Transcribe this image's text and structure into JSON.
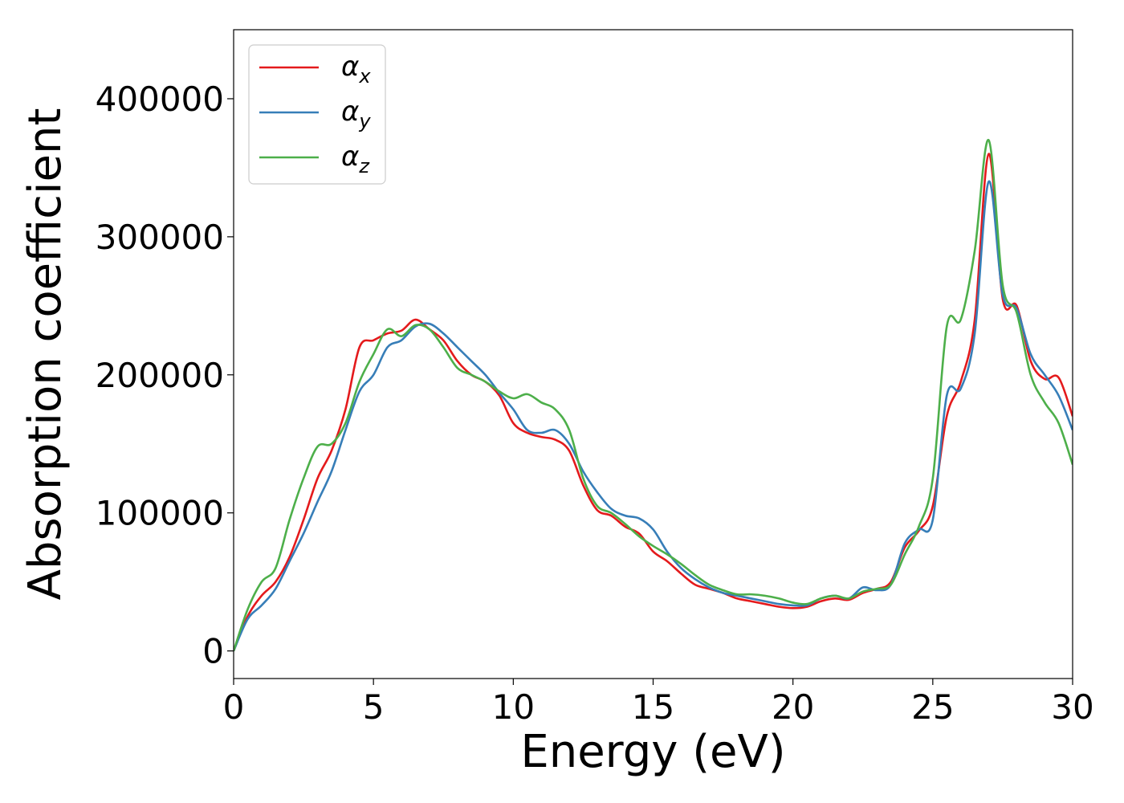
{
  "chart_data": {
    "type": "line",
    "title": "",
    "xlabel": "Energy (eV)",
    "ylabel": "Absorption coefficient",
    "xlim": [
      0,
      30
    ],
    "ylim": [
      -20000,
      450000
    ],
    "xticks": [
      0,
      5,
      10,
      15,
      20,
      25,
      30
    ],
    "xtick_labels": [
      "0",
      "5",
      "10",
      "15",
      "20",
      "25",
      "30"
    ],
    "yticks": [
      0,
      100000,
      200000,
      300000,
      400000
    ],
    "ytick_labels": [
      "0",
      "100000",
      "200000",
      "300000",
      "400000"
    ],
    "grid": false,
    "legend_position": "top-left",
    "colors": {
      "alpha_x": "#e41a1c",
      "alpha_y": "#377eb8",
      "alpha_z": "#4daf4a"
    },
    "series": [
      {
        "key": "alpha_x",
        "name_base": "α",
        "name_sub": "x",
        "color": "#e41a1c",
        "x": [
          0,
          0.5,
          1.0,
          1.5,
          2.0,
          2.5,
          3.0,
          3.5,
          4.0,
          4.5,
          5.0,
          5.5,
          6.0,
          6.5,
          7.0,
          7.5,
          8.0,
          8.5,
          9.0,
          9.5,
          10.0,
          10.5,
          11.0,
          11.5,
          12.0,
          12.5,
          13.0,
          13.5,
          14.0,
          14.5,
          15.0,
          15.5,
          16.0,
          16.5,
          17.0,
          17.5,
          18.0,
          18.5,
          19.0,
          19.5,
          20.0,
          20.5,
          21.0,
          21.5,
          22.0,
          22.5,
          23.0,
          23.5,
          24.0,
          24.5,
          25.0,
          25.5,
          26.0,
          26.5,
          27.0,
          27.5,
          28.0,
          28.5,
          29.0,
          29.5,
          30.0
        ],
        "y": [
          0,
          25000,
          40000,
          50000,
          68000,
          95000,
          125000,
          145000,
          175000,
          220000,
          225000,
          230000,
          232000,
          240000,
          233000,
          225000,
          210000,
          200000,
          195000,
          185000,
          165000,
          158000,
          155000,
          153000,
          145000,
          120000,
          102000,
          98000,
          90000,
          85000,
          72000,
          65000,
          56000,
          48000,
          45000,
          42000,
          38000,
          36000,
          34000,
          32000,
          31000,
          32000,
          36000,
          38000,
          37000,
          42000,
          45000,
          50000,
          75000,
          87000,
          105000,
          170000,
          195000,
          240000,
          360000,
          255000,
          250000,
          210000,
          197000,
          198000,
          170000
        ]
      },
      {
        "key": "alpha_y",
        "name_base": "α",
        "name_sub": "y",
        "color": "#377eb8",
        "x": [
          0,
          0.5,
          1.0,
          1.5,
          2.0,
          2.5,
          3.0,
          3.5,
          4.0,
          4.5,
          5.0,
          5.5,
          6.0,
          6.5,
          7.0,
          7.5,
          8.0,
          8.5,
          9.0,
          9.5,
          10.0,
          10.5,
          11.0,
          11.5,
          12.0,
          12.5,
          13.0,
          13.5,
          14.0,
          14.5,
          15.0,
          15.5,
          16.0,
          16.5,
          17.0,
          17.5,
          18.0,
          18.5,
          19.0,
          19.5,
          20.0,
          20.5,
          21.0,
          21.5,
          22.0,
          22.5,
          23.0,
          23.5,
          24.0,
          24.5,
          25.0,
          25.5,
          26.0,
          26.5,
          27.0,
          27.5,
          28.0,
          28.5,
          29.0,
          29.5,
          30.0
        ],
        "y": [
          0,
          23000,
          33000,
          45000,
          65000,
          85000,
          108000,
          130000,
          160000,
          188000,
          200000,
          220000,
          225000,
          235000,
          237000,
          230000,
          220000,
          210000,
          200000,
          187000,
          175000,
          160000,
          158000,
          160000,
          150000,
          130000,
          115000,
          103000,
          98000,
          96000,
          88000,
          72000,
          60000,
          52000,
          46000,
          42000,
          40000,
          38000,
          36000,
          34000,
          33000,
          33000,
          38000,
          40000,
          38000,
          46000,
          44000,
          48000,
          78000,
          88000,
          95000,
          185000,
          190000,
          230000,
          340000,
          258000,
          248000,
          215000,
          200000,
          185000,
          160000
        ]
      },
      {
        "key": "alpha_z",
        "name_base": "α",
        "name_sub": "z",
        "color": "#4daf4a",
        "x": [
          0,
          0.5,
          1.0,
          1.5,
          2.0,
          2.5,
          3.0,
          3.5,
          4.0,
          4.5,
          5.0,
          5.5,
          6.0,
          6.5,
          7.0,
          7.5,
          8.0,
          8.5,
          9.0,
          9.5,
          10.0,
          10.5,
          11.0,
          11.5,
          12.0,
          12.5,
          13.0,
          13.5,
          14.0,
          14.5,
          15.0,
          15.5,
          16.0,
          16.5,
          17.0,
          17.5,
          18.0,
          18.5,
          19.0,
          19.5,
          20.0,
          20.5,
          21.0,
          21.5,
          22.0,
          22.5,
          23.0,
          23.5,
          24.0,
          24.5,
          25.0,
          25.5,
          26.0,
          26.5,
          27.0,
          27.5,
          28.0,
          28.5,
          29.0,
          29.5,
          30.0
        ],
        "y": [
          0,
          30000,
          50000,
          60000,
          95000,
          125000,
          148000,
          150000,
          165000,
          195000,
          215000,
          233000,
          228000,
          236000,
          233000,
          220000,
          205000,
          200000,
          195000,
          188000,
          183000,
          186000,
          180000,
          175000,
          160000,
          125000,
          105000,
          100000,
          92000,
          83000,
          76000,
          70000,
          63000,
          55000,
          48000,
          44000,
          41000,
          41000,
          40000,
          38000,
          35000,
          34000,
          38000,
          40000,
          38000,
          43000,
          45000,
          48000,
          70000,
          90000,
          125000,
          235000,
          240000,
          290000,
          370000,
          265000,
          245000,
          200000,
          180000,
          165000,
          135000
        ]
      }
    ]
  }
}
